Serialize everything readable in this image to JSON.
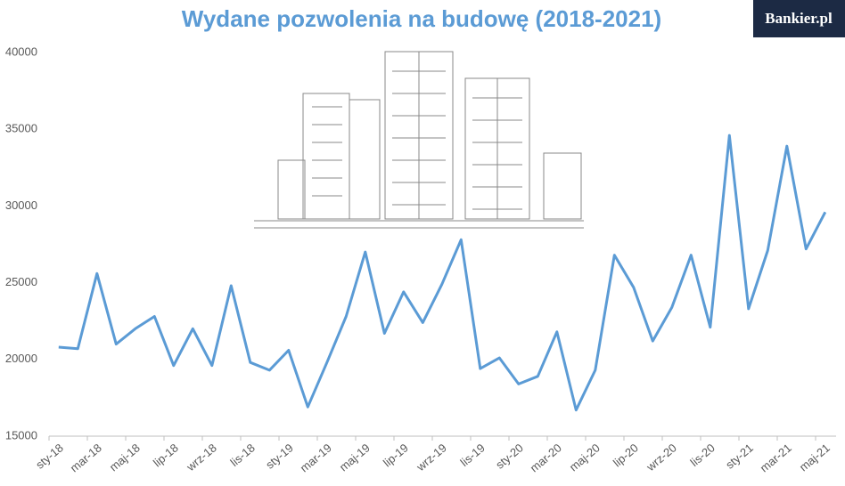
{
  "brand": "Bankier.pl",
  "chart_data": {
    "type": "line",
    "title": "Wydane pozwolenia na budowę (2018-2021)",
    "categories": [
      "sty-18",
      null,
      "mar-18",
      null,
      "maj-18",
      null,
      "lip-18",
      null,
      "wrz-18",
      null,
      "lis-18",
      null,
      "sty-19",
      null,
      "mar-19",
      null,
      "maj-19",
      null,
      "lip-19",
      null,
      "wrz-19",
      null,
      "lis-19",
      null,
      "sty-20",
      null,
      "mar-20",
      null,
      "maj-20",
      null,
      "lip-20",
      null,
      "wrz-20",
      null,
      "lis-20",
      null,
      "sty-21",
      null,
      "mar-21",
      null,
      "maj-21"
    ],
    "series": [
      {
        "name": "Wydane pozwolenia",
        "color": "#5b9bd5",
        "values": [
          20800,
          20700,
          25600,
          21000,
          22000,
          22800,
          19600,
          22000,
          19600,
          24800,
          19800,
          19300,
          20600,
          16900,
          19800,
          22800,
          27000,
          21700,
          24400,
          22400,
          24900,
          27800,
          19400,
          20100,
          18400,
          18900,
          21800,
          16700,
          19300,
          26800,
          24700,
          21200,
          23400,
          26800,
          22100,
          34600,
          23300,
          27100,
          33900,
          27200,
          29600
        ]
      }
    ],
    "ylim": [
      15000,
      40000
    ],
    "yticks": [
      15000,
      20000,
      25000,
      30000,
      35000,
      40000
    ],
    "grid": false
  }
}
